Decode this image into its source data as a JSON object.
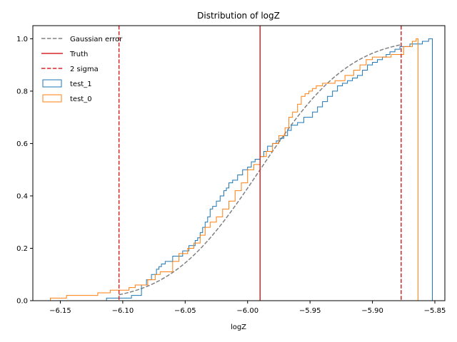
{
  "chart_data": {
    "type": "step-histogram",
    "title": "Distribution of logZ",
    "xlabel": "logZ",
    "ylabel": "",
    "xlim": [
      -6.172,
      -5.842
    ],
    "ylim": [
      0.0,
      1.05
    ],
    "xticks": [
      -6.15,
      -6.1,
      -6.05,
      -6.0,
      -5.95,
      -5.9,
      -5.85
    ],
    "xtick_labels": [
      "−6.15",
      "−6.10",
      "−6.05",
      "−6.00",
      "−5.95",
      "−5.90",
      "−5.85"
    ],
    "yticks": [
      0.0,
      0.2,
      0.4,
      0.6,
      0.8,
      1.0
    ],
    "ytick_labels": [
      "0.0",
      "0.2",
      "0.4",
      "0.6",
      "0.8",
      "1.0"
    ],
    "grid": false,
    "legend_position": "upper-left",
    "legend": [
      {
        "label": "Gaussian error",
        "style": "dashed-line",
        "color": "#808080"
      },
      {
        "label": "Truth",
        "style": "line",
        "color": "#d62728"
      },
      {
        "label": "2 sigma",
        "style": "dashed-line",
        "color": "#d62728"
      },
      {
        "label": "test_1",
        "style": "box",
        "color": "#1f77b4"
      },
      {
        "label": "test_0",
        "style": "box",
        "color": "#ff7f0e"
      }
    ],
    "gaussian_error": {
      "name": "Gaussian error",
      "mean": -5.99,
      "sigma": 0.0565,
      "color": "#808080"
    },
    "truth": {
      "name": "Truth",
      "x": -5.99,
      "color": "#d62728"
    },
    "two_sigma": {
      "name": "2 sigma",
      "x": [
        -6.103,
        -5.877
      ],
      "color": "#d62728"
    },
    "series": [
      {
        "name": "test_1",
        "color": "#1f77b4",
        "x": [
          -6.113,
          -6.093,
          -6.085,
          -6.081,
          -6.077,
          -6.073,
          -6.071,
          -6.069,
          -6.066,
          -6.06,
          -6.052,
          -6.047,
          -6.042,
          -6.04,
          -6.038,
          -6.036,
          -6.034,
          -6.032,
          -6.03,
          -6.028,
          -6.025,
          -6.022,
          -6.019,
          -6.017,
          -6.015,
          -6.012,
          -6.008,
          -6.004,
          -6.0,
          -5.997,
          -5.994,
          -5.99,
          -5.987,
          -5.984,
          -5.98,
          -5.977,
          -5.974,
          -5.971,
          -5.968,
          -5.965,
          -5.96,
          -5.955,
          -5.948,
          -5.944,
          -5.94,
          -5.936,
          -5.932,
          -5.928,
          -5.924,
          -5.92,
          -5.916,
          -5.912,
          -5.908,
          -5.904,
          -5.9,
          -5.896,
          -5.892,
          -5.889,
          -5.886,
          -5.882,
          -5.878,
          -5.874,
          -5.87,
          -5.866,
          -5.86,
          -5.855,
          -5.852
        ],
        "y": [
          0.01,
          0.02,
          0.06,
          0.08,
          0.1,
          0.12,
          0.13,
          0.14,
          0.15,
          0.17,
          0.19,
          0.21,
          0.23,
          0.24,
          0.26,
          0.28,
          0.3,
          0.32,
          0.35,
          0.36,
          0.38,
          0.4,
          0.42,
          0.43,
          0.45,
          0.46,
          0.48,
          0.5,
          0.51,
          0.53,
          0.54,
          0.55,
          0.57,
          0.59,
          0.6,
          0.61,
          0.62,
          0.63,
          0.65,
          0.67,
          0.68,
          0.7,
          0.72,
          0.74,
          0.76,
          0.78,
          0.8,
          0.82,
          0.83,
          0.84,
          0.85,
          0.86,
          0.88,
          0.9,
          0.91,
          0.92,
          0.93,
          0.94,
          0.95,
          0.96,
          0.97,
          0.97,
          0.98,
          0.98,
          0.99,
          1.0,
          0.0
        ]
      },
      {
        "name": "test_0",
        "color": "#ff7f0e",
        "x": [
          -6.158,
          -6.145,
          -6.12,
          -6.11,
          -6.095,
          -6.09,
          -6.08,
          -6.074,
          -6.07,
          -6.06,
          -6.055,
          -6.048,
          -6.043,
          -6.038,
          -6.034,
          -6.03,
          -6.025,
          -6.02,
          -6.015,
          -6.01,
          -6.005,
          -6.0,
          -5.995,
          -5.99,
          -5.985,
          -5.98,
          -5.975,
          -5.97,
          -5.967,
          -5.964,
          -5.96,
          -5.957,
          -5.954,
          -5.951,
          -5.948,
          -5.945,
          -5.94,
          -5.93,
          -5.922,
          -5.915,
          -5.91,
          -5.905,
          -5.9,
          -5.895,
          -5.885,
          -5.875,
          -5.868,
          -5.865,
          -5.8635
        ],
        "y": [
          0.01,
          0.02,
          0.03,
          0.04,
          0.05,
          0.06,
          0.08,
          0.1,
          0.11,
          0.15,
          0.18,
          0.2,
          0.22,
          0.25,
          0.28,
          0.3,
          0.32,
          0.35,
          0.38,
          0.42,
          0.45,
          0.5,
          0.52,
          0.55,
          0.57,
          0.6,
          0.63,
          0.66,
          0.7,
          0.72,
          0.75,
          0.78,
          0.79,
          0.8,
          0.81,
          0.82,
          0.83,
          0.84,
          0.86,
          0.88,
          0.9,
          0.92,
          0.93,
          0.93,
          0.94,
          0.97,
          0.99,
          1.0,
          0.0
        ]
      }
    ]
  }
}
